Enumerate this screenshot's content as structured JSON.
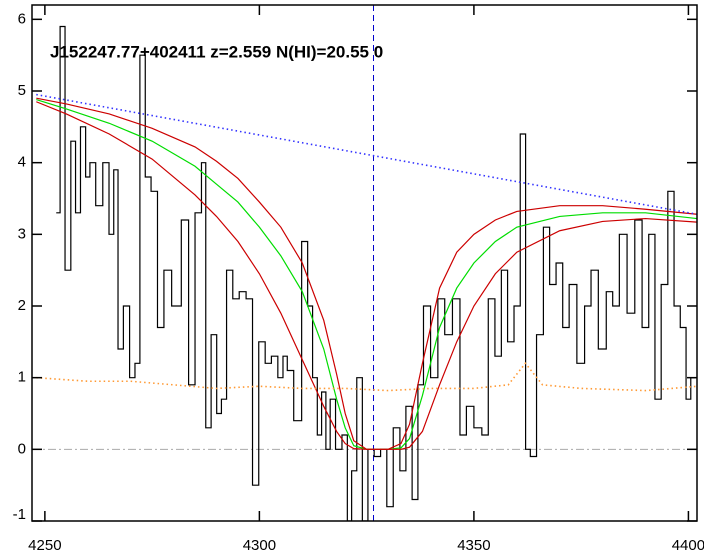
{
  "chart_data": {
    "type": "line",
    "annotation": "J152247.77+402411 z=2.559 N(HI)=20.55 0",
    "xlim": [
      4247,
      4402
    ],
    "ylim": [
      -1,
      6.2
    ],
    "xticks": [
      4250,
      4300,
      4350,
      4400
    ],
    "yticks": [
      -1,
      0,
      1,
      2,
      3,
      4,
      5,
      6
    ],
    "hline": {
      "y": 0,
      "color": "#aaaaaa"
    },
    "vline": {
      "x": 4326.6,
      "color": "#0000cc"
    },
    "series": [
      {
        "color": "#000000",
        "style": "step",
        "x": [
          4253.1,
          4254,
          4255.4,
          4256.7,
          4257.6,
          4259,
          4260,
          4261,
          4262.7,
          4264.3,
          4265.6,
          4266.5,
          4267.6,
          4269,
          4270.5,
          4271.5,
          4272.8,
          4274,
          4275.5,
          4277,
          4278.5,
          4280.6,
          4283,
          4284,
          4286,
          4287,
          4288,
          4289.5,
          4290.6,
          4291.7,
          4293,
          4294.6,
          4296,
          4297.8,
          4299,
          4300.7,
          4302,
          4303.6,
          4305,
          4306,
          4307,
          4309,
          4310.7,
          4311.8,
          4313,
          4314,
          4315,
          4316,
          4317,
          4318.5,
          4320,
          4321,
          4322,
          4323.4,
          4324.6,
          4326,
          4327.5,
          4329,
          4330.4,
          4332,
          4333.5,
          4334.8,
          4336.4,
          4337.5,
          4339,
          4340.8,
          4342.4,
          4344,
          4346,
          4347.5,
          4349,
          4351,
          4352.7,
          4354,
          4355.8,
          4357,
          4358.7,
          4360,
          4361.6,
          4362.5,
          4363.8,
          4365.4,
          4367,
          4368.3,
          4370,
          4371.4,
          4373,
          4375,
          4376.6,
          4378,
          4380,
          4381.7,
          4383,
          4384.8,
          4386.6,
          4388.4,
          4390,
          4391.5,
          4392.9,
          4394.4,
          4396,
          4397.3,
          4398.9,
          4400,
          4401.1
        ],
        "values": [
          3.3,
          5.9,
          2.5,
          4.3,
          3.3,
          4.5,
          3.8,
          4.0,
          3.4,
          4.0,
          3.0,
          3.9,
          1.4,
          2.0,
          1.0,
          1.2,
          5.5,
          3.8,
          3.6,
          1.7,
          2.5,
          2.0,
          3.2,
          0.9,
          3.3,
          4.0,
          0.3,
          1.6,
          0.5,
          0.7,
          2.5,
          2.1,
          2.2,
          2.1,
          -0.5,
          1.5,
          1.2,
          1.3,
          1.0,
          1.3,
          1.1,
          0.4,
          2.9,
          2.0,
          1.0,
          0.2,
          0.8,
          0.0,
          0.7,
          0.0,
          0.2,
          -1.0,
          -0.3,
          1.0,
          -1.0,
          0.0,
          -0.1,
          0.0,
          -0.8,
          0.3,
          -0.3,
          0.6,
          -0.7,
          0.9,
          2.0,
          1.0,
          2.1,
          1.6,
          2.1,
          0.2,
          0.6,
          0.3,
          0.2,
          2.1,
          1.3,
          2.5,
          1.5,
          2.0,
          4.4,
          0.0,
          -0.1,
          1.6,
          3.1,
          2.3,
          2.6,
          1.7,
          2.3,
          1.2,
          2.0,
          2.5,
          1.4,
          2.2,
          2.0,
          3.0,
          1.9,
          3.2,
          1.7,
          3.0,
          0.7,
          2.3,
          3.6,
          2.0,
          1.7,
          0.7,
          1.0
        ]
      },
      {
        "color": "#00dd00",
        "style": "solid",
        "x": [
          4248,
          4255,
          4265,
          4275,
          4285,
          4290,
          4295,
          4300,
          4305,
          4310,
          4315,
          4318,
          4320,
          4322,
          4325,
          4330,
          4333,
          4335,
          4338,
          4342,
          4346,
          4350,
          4355,
          4360,
          4370,
          4380,
          4390,
          4402
        ],
        "values": [
          4.88,
          4.75,
          4.55,
          4.3,
          3.95,
          3.7,
          3.45,
          3.1,
          2.7,
          2.2,
          1.4,
          0.7,
          0.3,
          0.05,
          0,
          0,
          0.02,
          0.15,
          0.75,
          1.7,
          2.25,
          2.6,
          2.9,
          3.1,
          3.25,
          3.3,
          3.3,
          3.22
        ]
      },
      {
        "color": "#cc0000",
        "style": "solid",
        "x": [
          4248,
          4255,
          4265,
          4275,
          4285,
          4290,
          4295,
          4300,
          4305,
          4310,
          4315,
          4318,
          4320,
          4322,
          4325,
          4330,
          4333,
          4335,
          4338,
          4342,
          4346,
          4350,
          4355,
          4360,
          4370,
          4380,
          4390,
          4402
        ],
        "values": [
          4.9,
          4.82,
          4.68,
          4.48,
          4.22,
          4.02,
          3.78,
          3.45,
          3.1,
          2.6,
          1.8,
          1.05,
          0.5,
          0.12,
          0,
          0,
          0.08,
          0.35,
          1.2,
          2.25,
          2.75,
          3.0,
          3.2,
          3.32,
          3.4,
          3.4,
          3.35,
          3.28
        ]
      },
      {
        "color": "#cc0000",
        "style": "solid",
        "x": [
          4248,
          4255,
          4265,
          4275,
          4285,
          4290,
          4295,
          4300,
          4305,
          4310,
          4315,
          4318,
          4320,
          4322,
          4325,
          4330,
          4333,
          4335,
          4338,
          4342,
          4346,
          4350,
          4355,
          4360,
          4370,
          4380,
          4390,
          4402
        ],
        "values": [
          4.85,
          4.68,
          4.4,
          4.05,
          3.55,
          3.25,
          2.9,
          2.45,
          1.9,
          1.25,
          0.6,
          0.25,
          0.08,
          0.01,
          0,
          0,
          0,
          0.03,
          0.25,
          0.9,
          1.5,
          2.0,
          2.45,
          2.75,
          3.05,
          3.18,
          3.22,
          3.17
        ]
      },
      {
        "color": "#3333ff",
        "style": "dotted",
        "x": [
          4248,
          4402
        ],
        "values": [
          4.95,
          3.28
        ]
      },
      {
        "color": "#ff9933",
        "style": "dotted",
        "x": [
          4248,
          4260,
          4270,
          4280,
          4290,
          4300,
          4310,
          4320,
          4330,
          4340,
          4350,
          4358,
          4362,
          4366,
          4375,
          4390,
          4402
        ],
        "values": [
          1.0,
          0.95,
          0.95,
          0.9,
          0.85,
          0.88,
          0.85,
          0.85,
          0.82,
          0.85,
          0.85,
          0.9,
          1.2,
          0.9,
          0.85,
          0.82,
          0.88
        ]
      }
    ]
  }
}
